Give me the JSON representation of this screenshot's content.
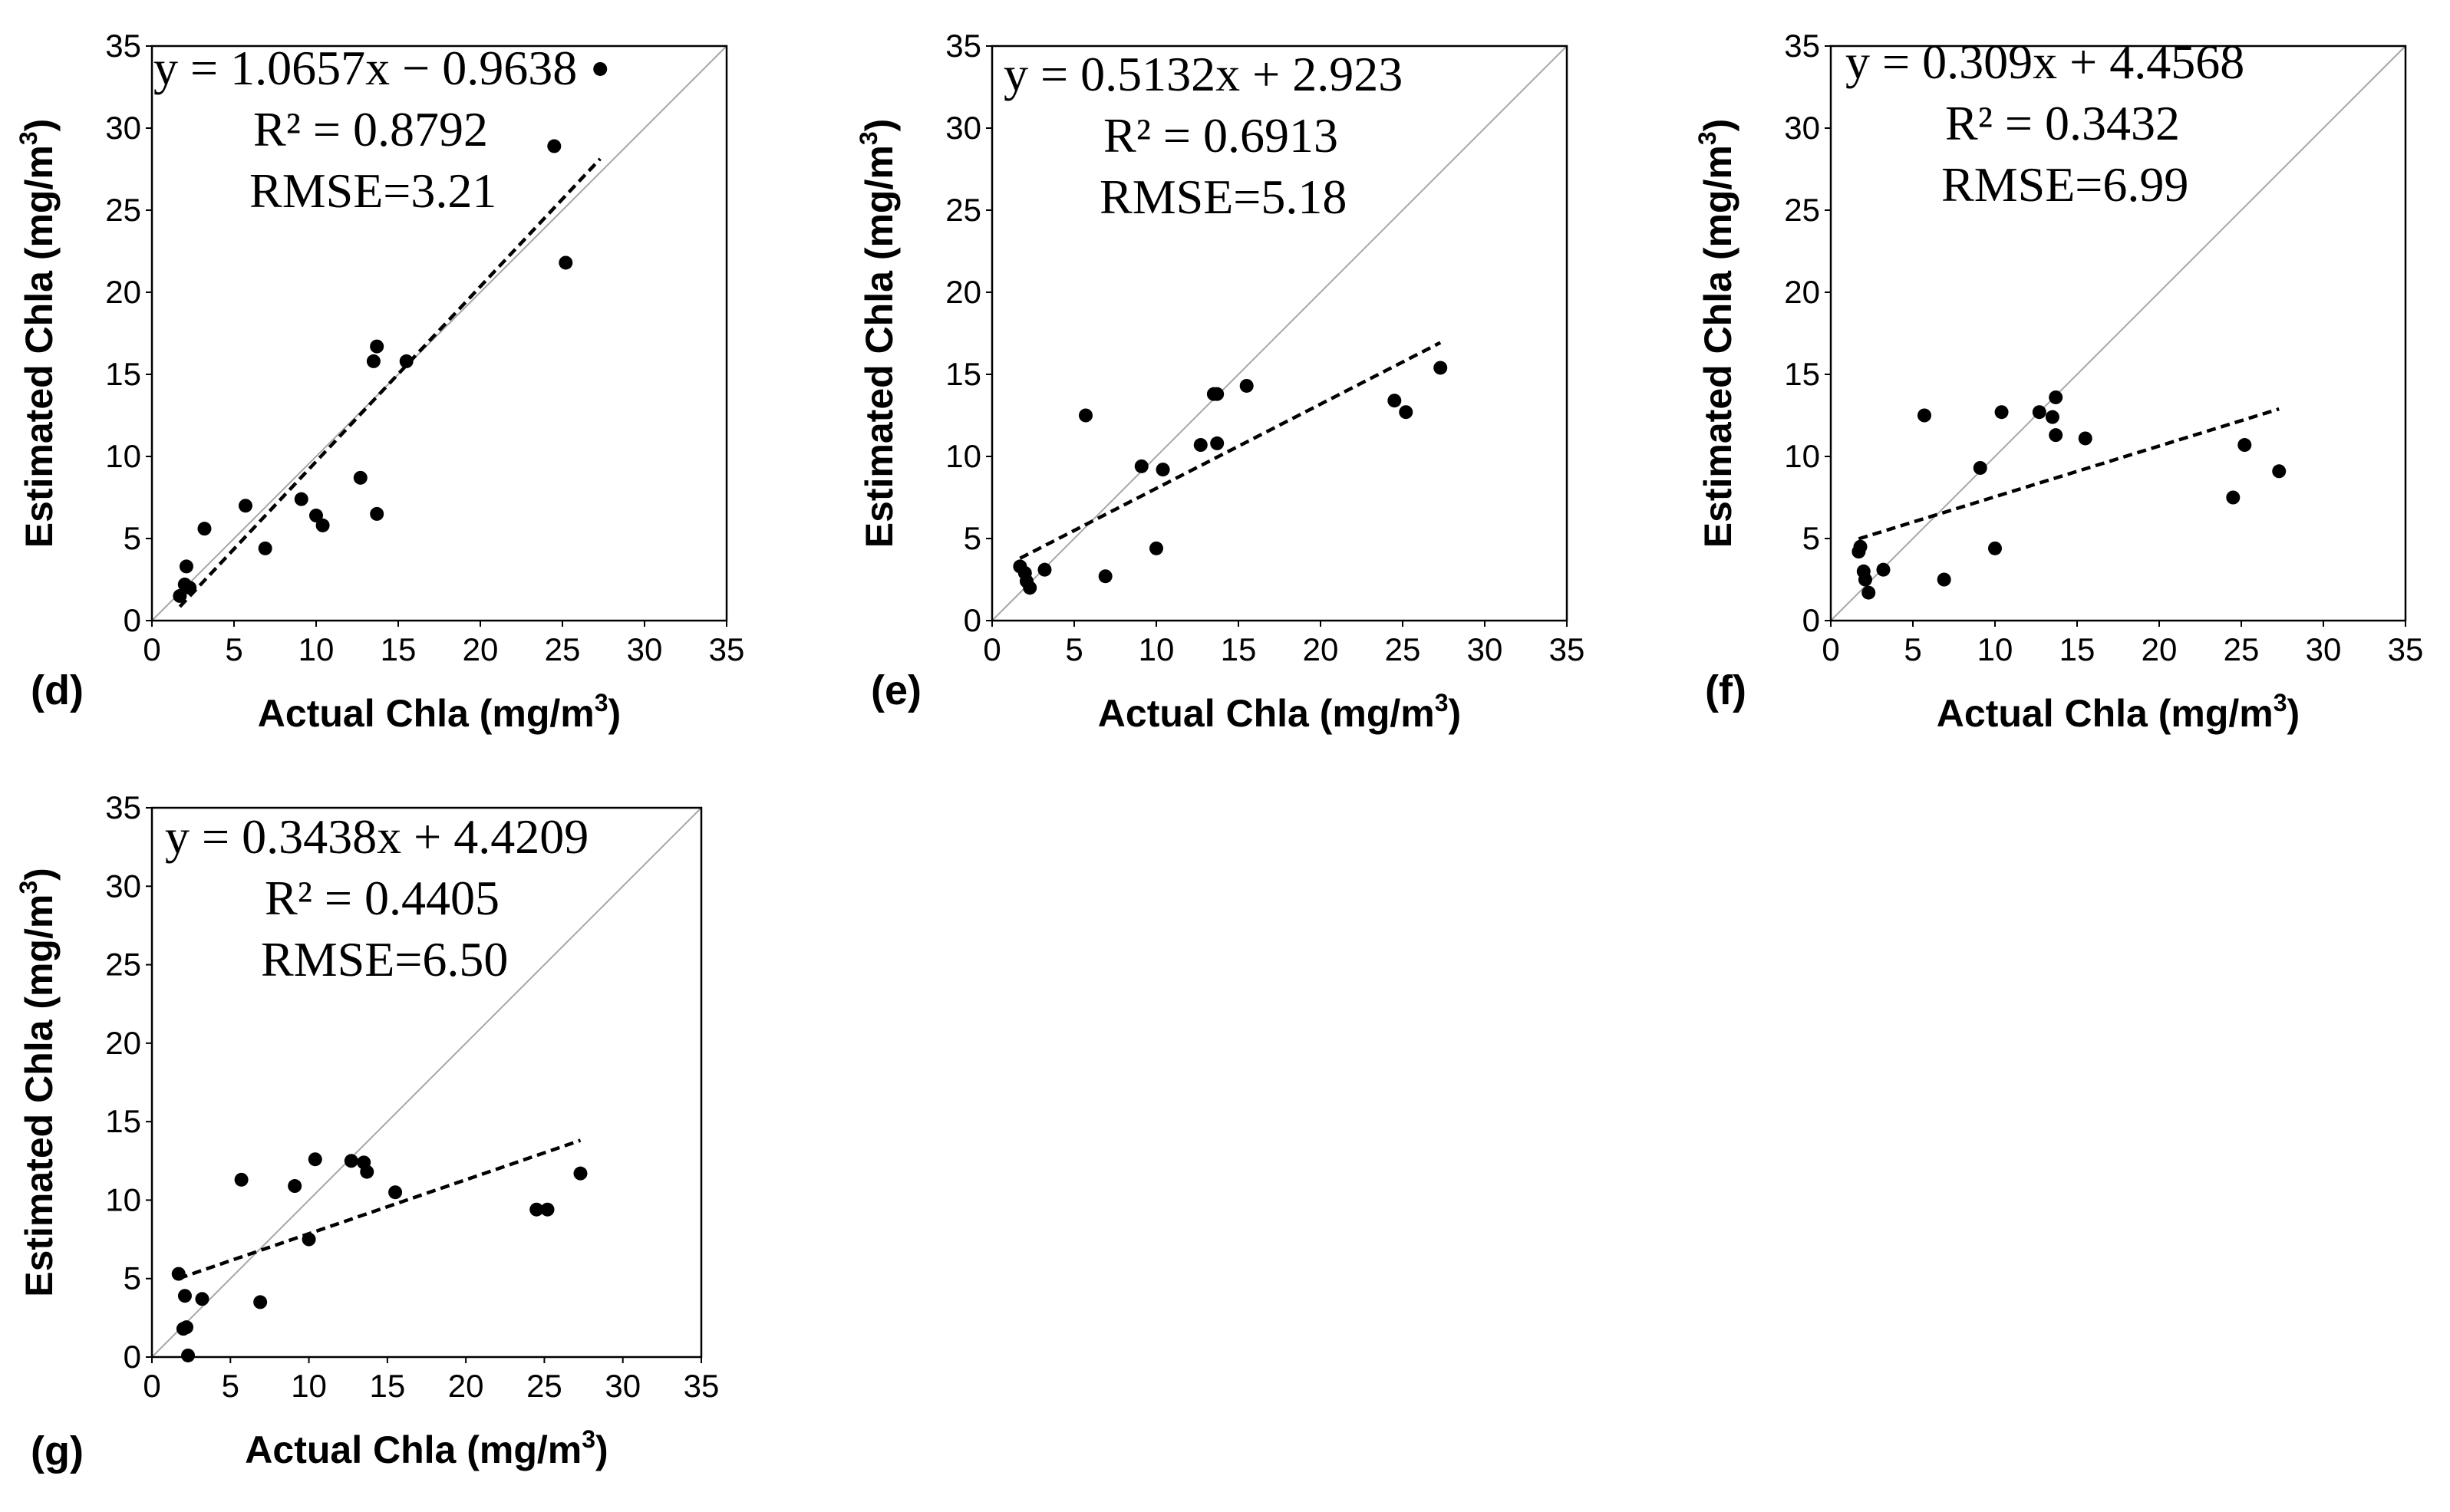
{
  "chart_data": [
    {
      "type": "scatter",
      "panel": "(d)",
      "xlabel": "Actual Chla (mg/m",
      "ylabel": "Estimated Chla (mg/m",
      "unit_superscript": "3",
      "unit_close": ")",
      "xlim": [
        0,
        35
      ],
      "ylim": [
        0,
        35
      ],
      "ticks": [
        "0",
        "5",
        "10",
        "15",
        "20",
        "25",
        "30",
        "35"
      ],
      "equation": "y = 1.0657x − 0.9638",
      "r2": "R² = 0.8792",
      "rmse": "RMSE=3.21",
      "fit": {
        "slope": 1.0657,
        "intercept": -0.9638,
        "x_range": [
          1.7,
          27.3
        ]
      },
      "points": [
        [
          27.3,
          33.6
        ],
        [
          24.5,
          28.9
        ],
        [
          25.2,
          21.8
        ],
        [
          13.7,
          16.7
        ],
        [
          13.5,
          15.8
        ],
        [
          15.5,
          15.8
        ],
        [
          12.7,
          8.7
        ],
        [
          13.7,
          6.5
        ],
        [
          9.1,
          7.4
        ],
        [
          10.0,
          6.4
        ],
        [
          10.4,
          5.8
        ],
        [
          5.7,
          7.0
        ],
        [
          3.2,
          5.6
        ],
        [
          6.9,
          4.4
        ],
        [
          2.1,
          3.3
        ],
        [
          1.7,
          1.5
        ],
        [
          2.0,
          2.2
        ],
        [
          2.3,
          2.0
        ]
      ]
    },
    {
      "type": "scatter",
      "panel": "(e)",
      "xlabel": "Actual Chla (mg/m",
      "ylabel": "Estimated Chla (mg/m",
      "unit_superscript": "3",
      "unit_close": ")",
      "xlim": [
        0,
        35
      ],
      "ylim": [
        0,
        35
      ],
      "ticks": [
        "0",
        "5",
        "10",
        "15",
        "20",
        "25",
        "30",
        "35"
      ],
      "equation": "y = 0.5132x + 2.923",
      "r2": "R² = 0.6913",
      "rmse": "RMSE=5.18",
      "fit": {
        "slope": 0.5132,
        "intercept": 2.923,
        "x_range": [
          1.7,
          27.3
        ]
      },
      "points": [
        [
          27.3,
          15.4
        ],
        [
          24.5,
          13.4
        ],
        [
          25.2,
          12.7
        ],
        [
          5.7,
          12.5
        ],
        [
          15.5,
          14.3
        ],
        [
          13.5,
          13.8
        ],
        [
          13.7,
          13.8
        ],
        [
          12.7,
          10.7
        ],
        [
          13.7,
          10.8
        ],
        [
          9.1,
          9.4
        ],
        [
          10.4,
          9.2
        ],
        [
          10.0,
          4.4
        ],
        [
          6.9,
          2.7
        ],
        [
          3.2,
          3.1
        ],
        [
          1.7,
          3.3
        ],
        [
          2.0,
          2.9
        ],
        [
          2.1,
          2.4
        ],
        [
          2.3,
          2.0
        ]
      ]
    },
    {
      "type": "scatter",
      "panel": "(f)",
      "xlabel": "Actual Chla (mg/m",
      "ylabel": "Estimated Chla (mg/m",
      "unit_superscript": "3",
      "unit_close": ")",
      "xlim": [
        0,
        35
      ],
      "ylim": [
        0,
        35
      ],
      "ticks": [
        "0",
        "5",
        "10",
        "15",
        "20",
        "25",
        "30",
        "35"
      ],
      "equation": "y = 0.309x + 4.4568",
      "r2": "R² = 0.3432",
      "rmse": "RMSE=6.99",
      "fit": {
        "slope": 0.309,
        "intercept": 4.4568,
        "x_range": [
          1.7,
          27.3
        ]
      },
      "points": [
        [
          5.7,
          12.5
        ],
        [
          10.4,
          12.7
        ],
        [
          12.7,
          12.7
        ],
        [
          13.7,
          13.6
        ],
        [
          13.5,
          12.4
        ],
        [
          13.7,
          11.3
        ],
        [
          15.5,
          11.1
        ],
        [
          9.1,
          9.3
        ],
        [
          25.2,
          10.7
        ],
        [
          27.3,
          9.1
        ],
        [
          24.5,
          7.5
        ],
        [
          10.0,
          4.4
        ],
        [
          6.9,
          2.5
        ],
        [
          3.2,
          3.1
        ],
        [
          1.7,
          4.2
        ],
        [
          1.8,
          4.5
        ],
        [
          2.0,
          3.0
        ],
        [
          2.1,
          2.5
        ],
        [
          2.3,
          1.7
        ]
      ]
    },
    {
      "type": "scatter",
      "panel": "(g)",
      "xlabel": "Actual Chla (mg/m",
      "ylabel": "Estimated Chla (mg/m",
      "unit_superscript": "3",
      "unit_close": ")",
      "xlim": [
        0,
        35
      ],
      "ylim": [
        0,
        35
      ],
      "ticks": [
        "0",
        "5",
        "10",
        "15",
        "20",
        "25",
        "30",
        "35"
      ],
      "equation": "y = 0.3438x + 4.4209",
      "r2": "R² = 0.4405",
      "rmse": "RMSE=6.50",
      "fit": {
        "slope": 0.3438,
        "intercept": 4.4209,
        "x_range": [
          1.7,
          27.3
        ]
      },
      "points": [
        [
          5.7,
          11.3
        ],
        [
          10.4,
          12.6
        ],
        [
          12.7,
          12.5
        ],
        [
          13.5,
          12.4
        ],
        [
          13.7,
          11.8
        ],
        [
          9.1,
          10.9
        ],
        [
          15.5,
          10.5
        ],
        [
          27.3,
          11.7
        ],
        [
          24.5,
          9.4
        ],
        [
          25.2,
          9.4
        ],
        [
          10.0,
          7.5
        ],
        [
          6.9,
          3.5
        ],
        [
          3.2,
          3.7
        ],
        [
          1.7,
          5.3
        ],
        [
          2.1,
          3.9
        ],
        [
          2.0,
          1.8
        ],
        [
          2.2,
          1.9
        ],
        [
          2.3,
          0.1
        ]
      ]
    }
  ]
}
